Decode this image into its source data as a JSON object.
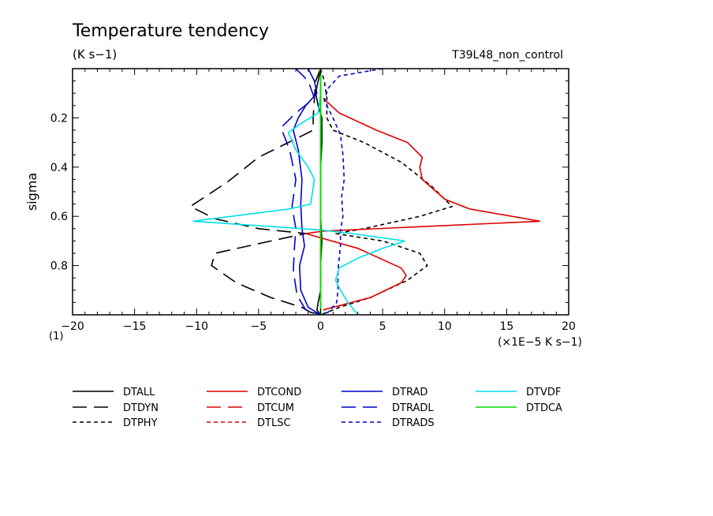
{
  "chart_data": {
    "type": "line",
    "title": "Temperature tendency",
    "subtitle": "(K s−1)",
    "run_label": "T39L48_non_control",
    "ylabel": "sigma",
    "xlabel": "(×1E−5 K s−1)",
    "x_axis_note": "(1)",
    "xlim": [
      -20,
      20
    ],
    "ylim": [
      1.0,
      0.0
    ],
    "y_inverted": true,
    "x_ticks": [
      -20,
      -15,
      -10,
      -5,
      0,
      5,
      10,
      15,
      20
    ],
    "x_tick_labels": [
      "−20",
      "−15",
      "−10",
      "−5",
      "0",
      "5",
      "10",
      "15",
      "20"
    ],
    "y_ticks": [
      0.2,
      0.4,
      0.6,
      0.8
    ],
    "y_tick_labels": [
      "0.2",
      "0.4",
      "0.6",
      "0.8"
    ],
    "grid": false,
    "legend_position": "bottom",
    "series": [
      {
        "name": "DTALL",
        "color": "#000000",
        "dash": "solid",
        "points": [
          [
            0,
            0.0
          ],
          [
            -0.2,
            0.05
          ],
          [
            -0.4,
            0.1
          ],
          [
            -0.2,
            0.15
          ],
          [
            0.1,
            0.2
          ],
          [
            0.1,
            0.25
          ],
          [
            0.1,
            0.3
          ],
          [
            0,
            0.4
          ],
          [
            0,
            0.5
          ],
          [
            0,
            0.6
          ],
          [
            0.1,
            0.7
          ],
          [
            0,
            0.8
          ],
          [
            0,
            0.9
          ],
          [
            -0.2,
            0.95
          ],
          [
            -0.3,
            0.98
          ],
          [
            0,
            1.0
          ]
        ]
      },
      {
        "name": "DTDYN",
        "color": "#000000",
        "dash": "longdash",
        "points": [
          [
            0,
            0.0
          ],
          [
            -0.4,
            0.05
          ],
          [
            -0.5,
            0.12
          ],
          [
            -0.6,
            0.2
          ],
          [
            -0.6,
            0.25
          ],
          [
            -2.2,
            0.29
          ],
          [
            -5.0,
            0.36
          ],
          [
            -7.5,
            0.46
          ],
          [
            -10.5,
            0.56
          ],
          [
            -8.5,
            0.61
          ],
          [
            -5.0,
            0.65
          ],
          [
            -1.2,
            0.67
          ],
          [
            -4.0,
            0.7
          ],
          [
            -8.5,
            0.75
          ],
          [
            -8.8,
            0.8
          ],
          [
            -6.8,
            0.87
          ],
          [
            -4.0,
            0.93
          ],
          [
            -1.5,
            0.97
          ],
          [
            -0.8,
            0.99
          ],
          [
            0,
            1.0
          ]
        ]
      },
      {
        "name": "DTPHY",
        "color": "#000000",
        "dash": "shortdash",
        "points": [
          [
            0,
            0.0
          ],
          [
            0.3,
            0.05
          ],
          [
            0.5,
            0.12
          ],
          [
            0.5,
            0.2
          ],
          [
            1.0,
            0.25
          ],
          [
            3.5,
            0.3
          ],
          [
            6.5,
            0.38
          ],
          [
            9.0,
            0.48
          ],
          [
            10.6,
            0.56
          ],
          [
            8.0,
            0.6
          ],
          [
            3.5,
            0.65
          ],
          [
            1.2,
            0.67
          ],
          [
            5.0,
            0.7
          ],
          [
            8.0,
            0.75
          ],
          [
            8.6,
            0.8
          ],
          [
            7.0,
            0.86
          ],
          [
            4.0,
            0.93
          ],
          [
            1.5,
            0.97
          ],
          [
            0.5,
            0.99
          ],
          [
            0,
            1.0
          ]
        ]
      },
      {
        "name": "DTCOND",
        "color": "#dd0000",
        "dash": "solid",
        "points": [
          [
            0.2,
            0.12
          ],
          [
            1.5,
            0.18
          ],
          [
            4.5,
            0.25
          ],
          [
            7.0,
            0.3
          ],
          [
            8.2,
            0.36
          ],
          [
            8.0,
            0.4
          ],
          [
            8.2,
            0.45
          ],
          [
            10.0,
            0.53
          ],
          [
            12.0,
            0.57
          ],
          [
            17.7,
            0.62
          ],
          [
            0.2,
            0.66
          ],
          [
            -1.2,
            0.67
          ],
          [
            3.0,
            0.73
          ],
          [
            6.5,
            0.81
          ],
          [
            6.9,
            0.84
          ],
          [
            6.5,
            0.87
          ],
          [
            4.0,
            0.93
          ],
          [
            0.2,
            0.98
          ]
        ]
      },
      {
        "name": "DTCUM",
        "color": "#dd0000",
        "dash": "longdash",
        "points": []
      },
      {
        "name": "DTLSC",
        "color": "#dd0000",
        "dash": "shortdash",
        "points": []
      },
      {
        "name": "DTRAD",
        "color": "#0000cc",
        "dash": "solid",
        "points": [
          [
            -1.0,
            0.0
          ],
          [
            -0.5,
            0.05
          ],
          [
            -0.3,
            0.1
          ],
          [
            -1.2,
            0.15
          ],
          [
            -1.8,
            0.2
          ],
          [
            -2.2,
            0.25
          ],
          [
            -1.8,
            0.33
          ],
          [
            -1.5,
            0.45
          ],
          [
            -1.6,
            0.55
          ],
          [
            -1.5,
            0.65
          ],
          [
            -1.3,
            0.72
          ],
          [
            -1.7,
            0.8
          ],
          [
            -1.6,
            0.9
          ],
          [
            -1.0,
            0.97
          ],
          [
            0,
            1.0
          ]
        ]
      },
      {
        "name": "DTRADL",
        "color": "#0000cc",
        "dash": "longdash",
        "points": [
          [
            -2.0,
            0.0
          ],
          [
            -1.0,
            0.05
          ],
          [
            -0.5,
            0.12
          ],
          [
            -2.0,
            0.18
          ],
          [
            -3.2,
            0.24
          ],
          [
            -2.5,
            0.33
          ],
          [
            -2.0,
            0.45
          ],
          [
            -2.3,
            0.56
          ],
          [
            -2.0,
            0.65
          ],
          [
            -2.1,
            0.72
          ],
          [
            -2.2,
            0.82
          ],
          [
            -1.9,
            0.92
          ],
          [
            -1.2,
            0.98
          ],
          [
            0,
            1.0
          ]
        ]
      },
      {
        "name": "DTRADS",
        "color": "#0000cc",
        "dash": "shortdash",
        "points": [
          [
            5.0,
            0.0
          ],
          [
            1.5,
            0.03
          ],
          [
            0.6,
            0.08
          ],
          [
            0.3,
            0.13
          ],
          [
            1.0,
            0.2
          ],
          [
            1.6,
            0.27
          ],
          [
            1.8,
            0.35
          ],
          [
            1.9,
            0.45
          ],
          [
            1.7,
            0.52
          ],
          [
            1.8,
            0.6
          ],
          [
            1.6,
            0.66
          ],
          [
            1.6,
            0.72
          ],
          [
            1.4,
            0.82
          ],
          [
            1.4,
            0.9
          ],
          [
            1.3,
            0.95
          ],
          [
            0.6,
            0.99
          ],
          [
            0,
            1.0
          ]
        ]
      },
      {
        "name": "DTVDF",
        "color": "#00e0e8",
        "dash": "solid",
        "points": [
          [
            0,
            0.0
          ],
          [
            0,
            0.1
          ],
          [
            -0.2,
            0.18
          ],
          [
            -1.5,
            0.22
          ],
          [
            -2.6,
            0.26
          ],
          [
            -2.0,
            0.33
          ],
          [
            -1.0,
            0.4
          ],
          [
            -0.5,
            0.45
          ],
          [
            -0.8,
            0.55
          ],
          [
            -2.5,
            0.57
          ],
          [
            -10.3,
            0.62
          ],
          [
            0,
            0.655
          ],
          [
            2.5,
            0.67
          ],
          [
            6.8,
            0.7
          ],
          [
            5.0,
            0.73
          ],
          [
            3.0,
            0.77
          ],
          [
            1.5,
            0.81
          ],
          [
            1.2,
            0.86
          ],
          [
            1.6,
            0.9
          ],
          [
            2.2,
            0.95
          ],
          [
            3.0,
            1.0
          ]
        ]
      },
      {
        "name": "DTDCA",
        "color": "#00dd00",
        "dash": "solid",
        "points": [
          [
            0,
            0.0
          ],
          [
            0,
            1.0
          ]
        ]
      }
    ]
  }
}
